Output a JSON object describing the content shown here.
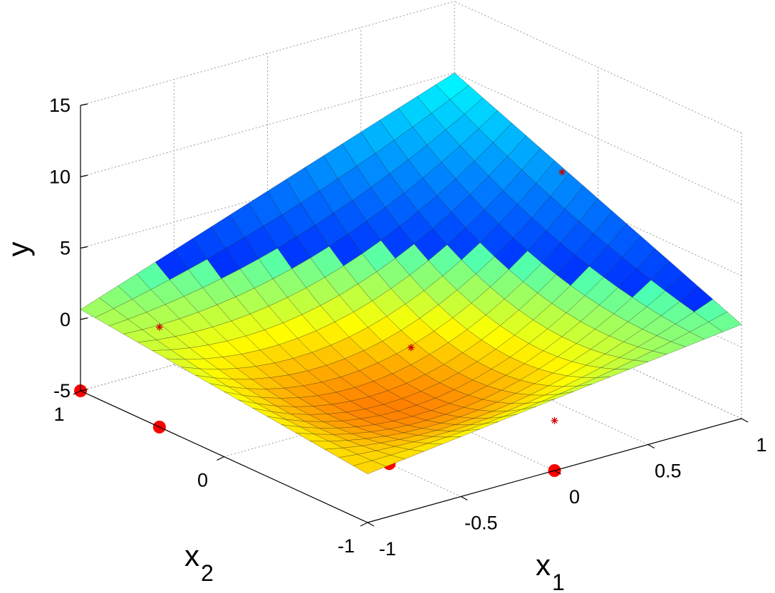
{
  "chart_data": {
    "type": "surface",
    "title": "",
    "xlabel": {
      "base": "x",
      "sub": "1"
    },
    "ylabel": {
      "base": "x",
      "sub": "2"
    },
    "zlabel": "y",
    "xlim": [
      -1,
      1
    ],
    "ylim": [
      -1,
      1
    ],
    "zlim": [
      -5,
      15
    ],
    "x_ticks": [
      "-1",
      "-0.5",
      "0",
      "0.5",
      "1"
    ],
    "y_ticks": [
      "-1",
      "0",
      "1"
    ],
    "z_ticks": [
      "-5",
      "0",
      "5",
      "10",
      "15"
    ],
    "grid": true,
    "colormap": "jet",
    "surface": {
      "description": "quadratic bowl response surface over x1, x2 in [-1, 1]",
      "corner_values": {
        "x1=-1,x2=-1": -1.6,
        "x1=1,x2=-1": 1.6,
        "x1=-1,x2=1": 0.7,
        "x1=1,x2=1": 10.0
      },
      "minimum_value": -2.2,
      "grid_resolution": 21
    },
    "sample_points_floor": [
      {
        "x1": -1.0,
        "x2": 1.0
      },
      {
        "x1": -1.0,
        "x2": 0.45
      },
      {
        "x1": -0.5,
        "x2": -0.5
      },
      {
        "x1": 0.0,
        "x2": 0.0
      },
      {
        "x1": 0.0,
        "x2": -1.0
      },
      {
        "x1": 0.6,
        "x2": 0.6
      },
      {
        "x1": 1.0,
        "x2": 0.25
      }
    ],
    "sample_points_surface": [
      {
        "x1": -1.0,
        "x2": 0.45,
        "y": 2.0
      },
      {
        "x1": 0.0,
        "x2": 0.0,
        "y": -1.0
      },
      {
        "x1": 0.0,
        "x2": -1.0,
        "y": -1.5
      },
      {
        "x1": 1.0,
        "x2": 0.25,
        "y": 6.5
      }
    ],
    "marker_color": "#ff0000",
    "asterisk_color": "#cc0000"
  }
}
